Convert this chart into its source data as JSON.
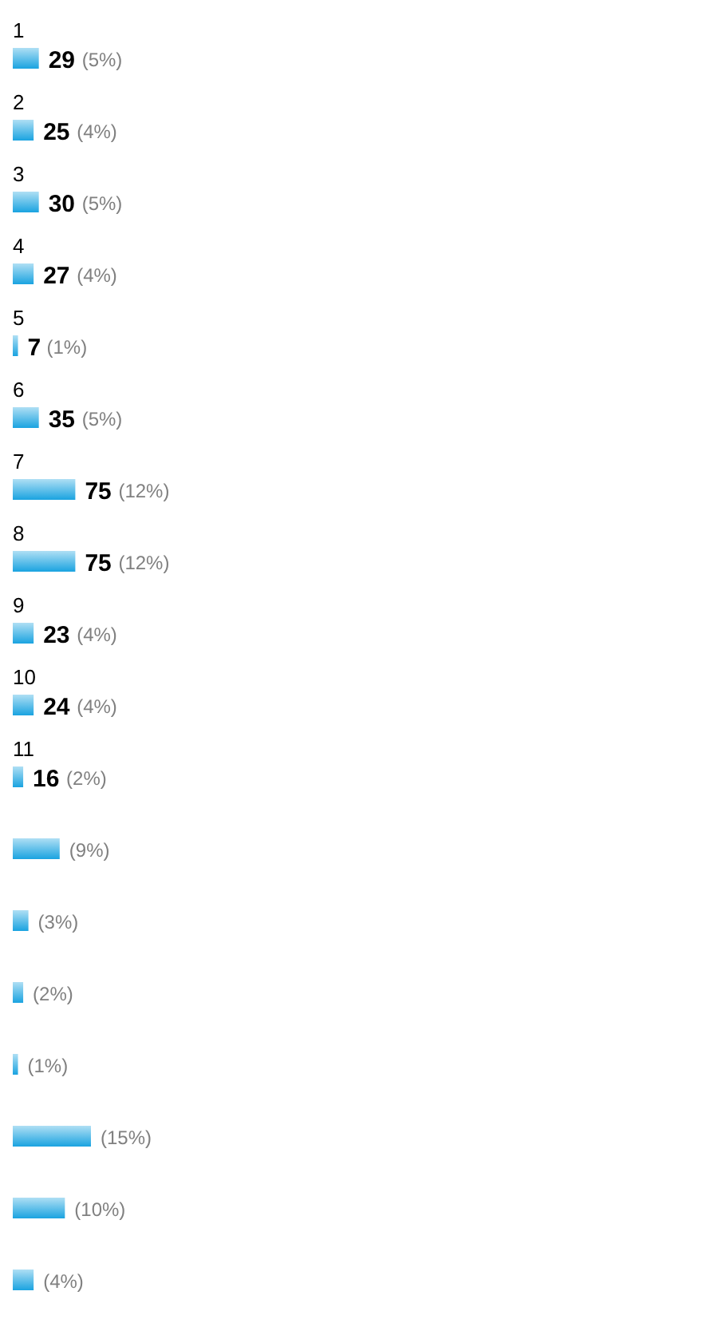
{
  "chart_data": {
    "type": "bar",
    "orientation": "horizontal",
    "color": "#1aa3e0",
    "categories": [
      "1",
      "2",
      "3",
      "4",
      "5",
      "6",
      "7",
      "8",
      "9",
      "10",
      "11",
      null,
      null,
      null,
      null,
      null,
      null,
      null
    ],
    "values": [
      5,
      4,
      5,
      4,
      1,
      5,
      12,
      12,
      4,
      4,
      2,
      9,
      3,
      2,
      1,
      15,
      10,
      4
    ],
    "value_labels": [
      "29 (5%)",
      "25 (4%)",
      "30 (5%)",
      "27 (4%)",
      "7 (1%)",
      "35 (5%)",
      "75 (12%)",
      "75 (12%)",
      "23 (4%)",
      "24 (4%)",
      "16 (2%)",
      "(9%)",
      "(3%)",
      "(2%)",
      "(1%)",
      "(15%)",
      "(10%)",
      "(4%)"
    ]
  }
}
